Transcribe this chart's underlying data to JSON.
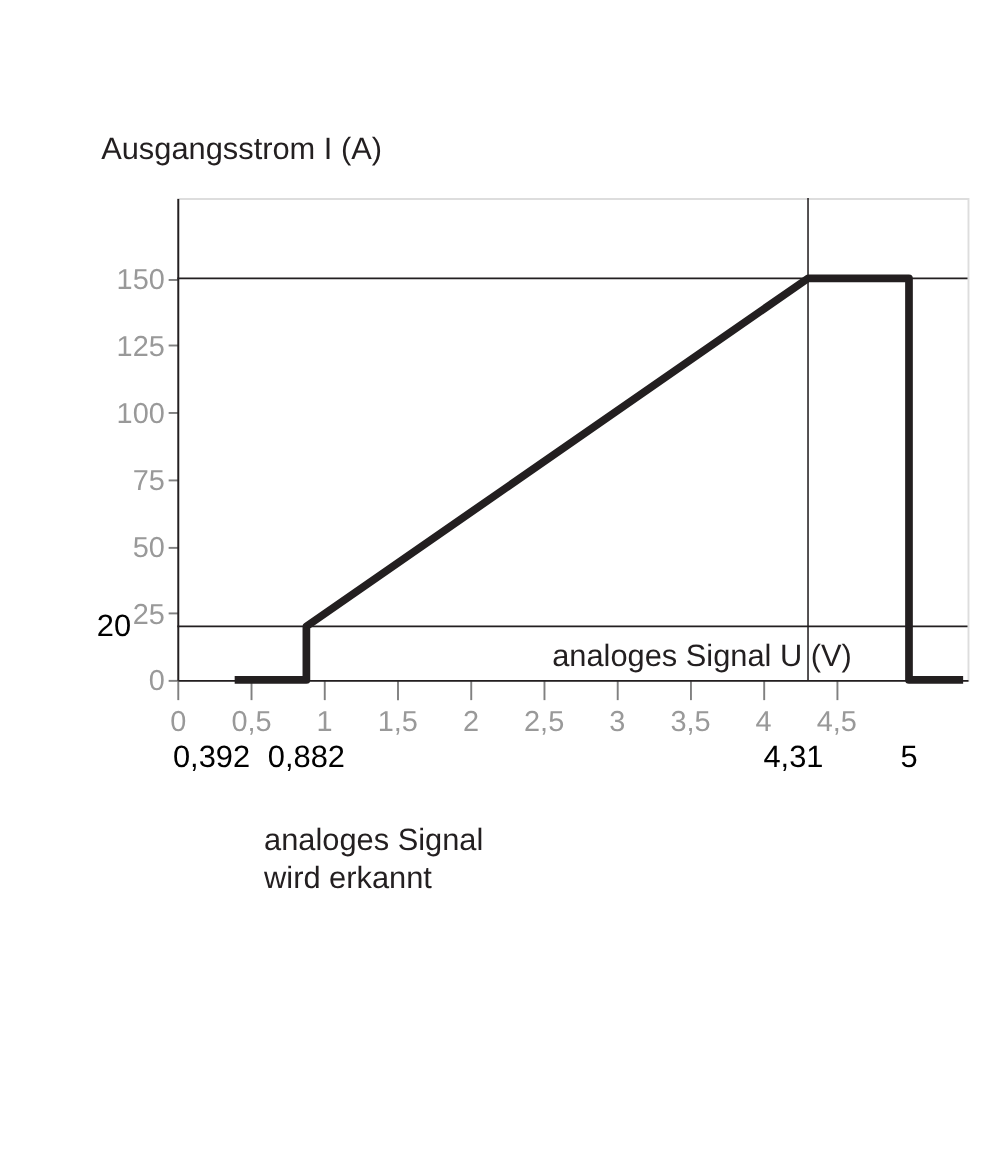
{
  "chart_data": {
    "type": "line",
    "xlabel": "analoges Signal U (V)",
    "ylabel": "Ausgangsstrom I (A)",
    "series": [
      {
        "color": "#231f20",
        "x": [
          0.392,
          0.882,
          0.882,
          4.31,
          5,
          5,
          5.37
        ],
        "values": [
          0,
          0,
          20,
          150,
          150,
          0,
          0
        ]
      }
    ],
    "xlim": [
      0,
      5.4
    ],
    "ylim": [
      0,
      180
    ],
    "xticks": [
      0,
      {
        "value": 0.5,
        "label": "0,5"
      },
      1,
      {
        "value": 1.5,
        "label": "1,5"
      },
      2,
      {
        "value": 2.5,
        "label": "2,5"
      },
      3,
      {
        "value": 3.5,
        "label": "3,5"
      },
      4,
      {
        "value": 4.5,
        "label": "4,5"
      }
    ],
    "yticks": [
      0,
      25,
      50,
      75,
      100,
      125,
      150
    ],
    "ref_lines": [
      {
        "axis": "y",
        "value": 150,
        "color": "#231f20"
      },
      {
        "axis": "y",
        "value": 20,
        "color": "#231f20"
      },
      {
        "axis": "x",
        "value": 4.31,
        "color": "#231f20"
      }
    ],
    "annotations": [
      {
        "text": "0,392",
        "x": 0.392,
        "y": 0
      },
      {
        "text": "0,882",
        "x": 0.882,
        "y": 0
      },
      {
        "text": "4,31",
        "x": 4.31,
        "y": 0
      },
      {
        "text": "5",
        "x": 5,
        "y": 0
      },
      {
        "text": "20",
        "x": 0,
        "y": 20
      },
      "analoges Signal wird erkannt"
    ],
    "grid": false,
    "marker": "none",
    "line_style": "solid"
  }
}
